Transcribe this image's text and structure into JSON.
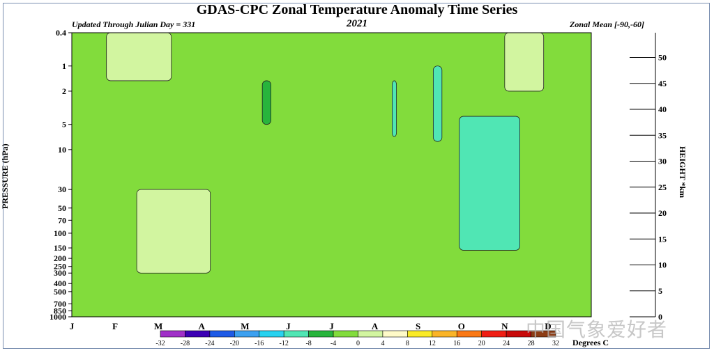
{
  "header": {
    "title": "GDAS-CPC Zonal Temperature Anomaly Time Series",
    "left_subtitle": "Updated Through Julian Day = 331",
    "year": "2021",
    "right_subtitle": "Zonal Mean [-90,-60]"
  },
  "watermark": "中国气象爱好者",
  "chart_data": {
    "type": "heatmap",
    "title": "GDAS-CPC Zonal Temperature Anomaly Time Series",
    "subtitle": "2021",
    "xlabel": "",
    "ylabel": "PRESSURE (hPa)",
    "y2label": "HEIGHT *km",
    "x_ticks": [
      "J",
      "F",
      "M",
      "A",
      "M",
      "J",
      "J",
      "A",
      "S",
      "O",
      "N",
      "D"
    ],
    "y_ticks": [
      "0.4",
      "1",
      "2",
      "5",
      "10",
      "30",
      "50",
      "70",
      "100",
      "150",
      "200",
      "250",
      "300",
      "400",
      "500",
      "700",
      "850",
      "1000"
    ],
    "y_tick_values": [
      0.4,
      1,
      2,
      5,
      10,
      30,
      50,
      70,
      100,
      150,
      200,
      250,
      300,
      400,
      500,
      700,
      850,
      1000
    ],
    "y2_ticks": [
      "50",
      "45",
      "40",
      "35",
      "30",
      "25",
      "20",
      "15",
      "10",
      "5",
      "0"
    ],
    "colorbar": {
      "label": "Degrees C",
      "levels": [
        "-32",
        "-28",
        "-24",
        "-20",
        "-16",
        "-12",
        "-8",
        "-4",
        "0",
        "4",
        "8",
        "12",
        "16",
        "20",
        "24",
        "28",
        "32"
      ],
      "colors": [
        "#a030c8",
        "#3c00b4",
        "#1e5ae6",
        "#3ca0f0",
        "#28d2f0",
        "#50e6b4",
        "#28b43c",
        "#82dc3c",
        "#d2f5a0",
        "#fffac8",
        "#faeb28",
        "#fab428",
        "#fa7814",
        "#f01e14",
        "#c80a0a",
        "#8c3c14"
      ]
    },
    "anomaly_regions": [
      {
        "anomaly": -6,
        "pressure_top": 1.5,
        "pressure_bottom": 5,
        "month_start": 4.4,
        "month_end": 4.6
      },
      {
        "anomaly": -10,
        "pressure_top": 1.5,
        "pressure_bottom": 7,
        "month_start": 7.4,
        "month_end": 7.5
      },
      {
        "anomaly": -10,
        "pressure_top": 1,
        "pressure_bottom": 8,
        "month_start": 8.35,
        "month_end": 8.55
      },
      {
        "anomaly": -10,
        "pressure_top": 4,
        "pressure_bottom": 160,
        "month_start": 8.95,
        "month_end": 10.35
      },
      {
        "anomaly": 2,
        "pressure_top": 0.4,
        "pressure_bottom": 2,
        "month_start": 10.0,
        "month_end": 10.9
      },
      {
        "anomaly": 2,
        "pressure_top": 30,
        "pressure_bottom": 300,
        "month_start": 1.5,
        "month_end": 3.2
      },
      {
        "anomaly": 2,
        "pressure_top": 0.4,
        "pressure_bottom": 1.5,
        "month_start": 0.8,
        "month_end": 2.3
      }
    ]
  }
}
